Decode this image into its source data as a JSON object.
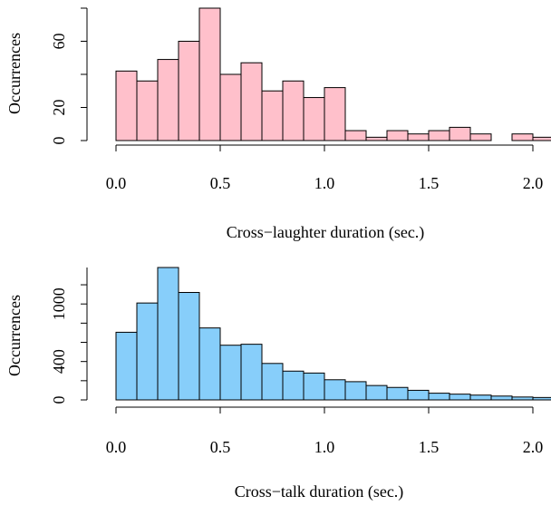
{
  "chart_data": [
    {
      "type": "bar",
      "xlabel": "Cross−laughter duration (sec.)",
      "ylabel": "Occurrences",
      "bar_color": "#FFC0CB",
      "bin_width": 0.1,
      "x": [
        0.0,
        0.1,
        0.2,
        0.3,
        0.4,
        0.5,
        0.6,
        0.7,
        0.8,
        0.9,
        1.0,
        1.1,
        1.2,
        1.3,
        1.4,
        1.5,
        1.6,
        1.7,
        1.8,
        1.9,
        2.0
      ],
      "values": [
        42,
        36,
        49,
        60,
        80,
        40,
        47,
        30,
        36,
        26,
        32,
        6,
        2,
        6,
        4,
        6,
        8,
        4,
        0,
        4,
        2
      ],
      "xlim": [
        0,
        2.05
      ],
      "ylim": [
        0,
        80
      ],
      "xticks": [
        "0.0",
        "0.5",
        "1.0",
        "1.5",
        "2.0"
      ],
      "yticks": [
        "0",
        "20",
        "60"
      ]
    },
    {
      "type": "bar",
      "xlabel": "Cross−talk duration (sec.)",
      "ylabel": "Occurrences",
      "bar_color": "#87CEFA",
      "bin_width": 0.1,
      "x": [
        0.0,
        0.1,
        0.2,
        0.3,
        0.4,
        0.5,
        0.6,
        0.7,
        0.8,
        0.9,
        1.0,
        1.1,
        1.2,
        1.3,
        1.4,
        1.5,
        1.6,
        1.7,
        1.8,
        1.9,
        2.0
      ],
      "values": [
        705,
        1010,
        1380,
        1120,
        750,
        570,
        580,
        380,
        300,
        280,
        210,
        190,
        150,
        130,
        100,
        70,
        60,
        50,
        40,
        30,
        25
      ],
      "xlim": [
        0,
        2.05
      ],
      "ylim": [
        0,
        1380
      ],
      "xticks": [
        "0.0",
        "0.5",
        "1.0",
        "1.5",
        "2.0"
      ],
      "yticks": [
        "0",
        "400",
        "1000"
      ]
    }
  ]
}
